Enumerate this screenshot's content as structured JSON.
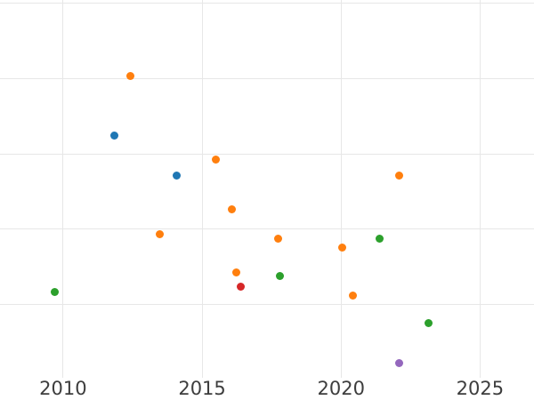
{
  "chart_data": {
    "type": "scatter",
    "title": "",
    "xlabel": "",
    "ylabel": "",
    "x_ticks": [
      2010,
      2015,
      2020,
      2025
    ],
    "x_tick_labels": [
      "2010",
      "2015",
      "2020",
      "2025"
    ],
    "xlim": [
      2007.73,
      2026.94
    ],
    "ylim": [
      0.03,
      5.04
    ],
    "y_gridlines": [
      1,
      2,
      3,
      4,
      5
    ],
    "y_tick_labels_visible": false,
    "grid": true,
    "legend_position": "none",
    "series": [
      {
        "name": "blue",
        "color": "#1f77b4",
        "points": [
          {
            "x": 2011.86,
            "y": 3.24
          },
          {
            "x": 2014.1,
            "y": 2.71
          }
        ]
      },
      {
        "name": "orange",
        "color": "#ff7f0e",
        "points": [
          {
            "x": 2012.43,
            "y": 4.03
          },
          {
            "x": 2013.49,
            "y": 1.93
          },
          {
            "x": 2015.48,
            "y": 2.92
          },
          {
            "x": 2016.08,
            "y": 2.26
          },
          {
            "x": 2016.24,
            "y": 1.43
          },
          {
            "x": 2017.75,
            "y": 1.88
          },
          {
            "x": 2020.05,
            "y": 1.76
          },
          {
            "x": 2020.44,
            "y": 1.12
          },
          {
            "x": 2022.1,
            "y": 2.71
          }
        ]
      },
      {
        "name": "green",
        "color": "#2ca02c",
        "points": [
          {
            "x": 2009.71,
            "y": 1.17
          },
          {
            "x": 2017.81,
            "y": 1.38
          },
          {
            "x": 2021.37,
            "y": 1.88
          },
          {
            "x": 2023.16,
            "y": 0.75
          }
        ]
      },
      {
        "name": "red",
        "color": "#d62728",
        "points": [
          {
            "x": 2016.4,
            "y": 1.24
          }
        ]
      },
      {
        "name": "purple",
        "color": "#9467bd",
        "points": [
          {
            "x": 2022.1,
            "y": 0.22
          }
        ]
      }
    ],
    "colors": {
      "background": "#ffffff",
      "gridline": "#e7e7e7",
      "tick_label": "#3d3d3d"
    }
  }
}
